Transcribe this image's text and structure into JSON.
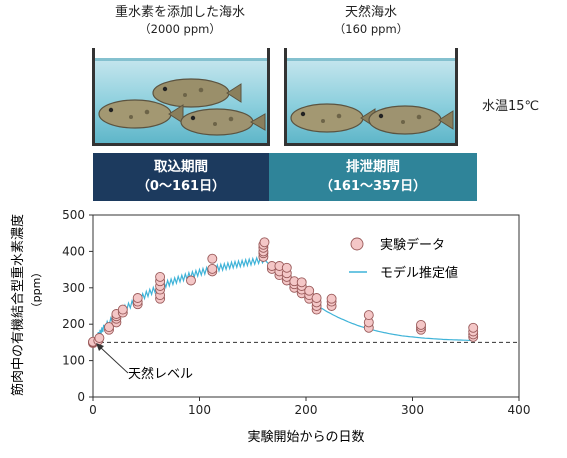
{
  "tanks": [
    {
      "title": "重水素を添加した海水",
      "sub": "（2000 ppm）"
    },
    {
      "title": "天然海水",
      "sub": "（160 ppm）"
    }
  ],
  "water_temp": "水温15℃",
  "periods": [
    {
      "name": "取込期間",
      "range": "（0～161日）",
      "color": "#1c3a5e"
    },
    {
      "name": "排泄期間",
      "range": "（161～357日）",
      "color": "#2f8499"
    }
  ],
  "colors": {
    "marker_fill": "#f4c7c7",
    "marker_edge": "#9a5a5a",
    "model": "#3fb3d8",
    "axis": "#333333"
  },
  "chart_data": {
    "type": "scatter",
    "xlabel": "実験開始からの日数",
    "ylabel": "筋肉中の有機結合型重水素濃度",
    "ylabel_unit": "（ppm）",
    "xlim": [
      0,
      400
    ],
    "ylim": [
      0,
      500
    ],
    "xticks": [
      "0",
      "100",
      "200",
      "300",
      "400"
    ],
    "yticks": [
      "0",
      "100",
      "200",
      "300",
      "400",
      "500"
    ],
    "legend": {
      "position": "top-right",
      "data_label": "実験データ",
      "model_label": "モデル推定値"
    },
    "natural_level": {
      "value": 150,
      "label": "天然レベル"
    },
    "series": [
      {
        "name": "実験データ",
        "kind": "points",
        "points": [
          [
            0,
            148
          ],
          [
            0,
            150
          ],
          [
            0,
            152
          ],
          [
            5,
            155
          ],
          [
            6,
            162
          ],
          [
            15,
            185
          ],
          [
            15,
            192
          ],
          [
            22,
            205
          ],
          [
            22,
            215
          ],
          [
            22,
            222
          ],
          [
            22,
            228
          ],
          [
            28,
            232
          ],
          [
            28,
            240
          ],
          [
            42,
            255
          ],
          [
            42,
            262
          ],
          [
            42,
            272
          ],
          [
            63,
            270
          ],
          [
            63,
            280
          ],
          [
            63,
            295
          ],
          [
            63,
            305
          ],
          [
            63,
            318
          ],
          [
            63,
            330
          ],
          [
            92,
            320
          ],
          [
            112,
            345
          ],
          [
            112,
            352
          ],
          [
            112,
            380
          ],
          [
            160,
            385
          ],
          [
            160,
            395
          ],
          [
            160,
            400
          ],
          [
            160,
            410
          ],
          [
            160,
            418
          ],
          [
            161,
            425
          ],
          [
            168,
            352
          ],
          [
            168,
            360
          ],
          [
            175,
            335
          ],
          [
            175,
            345
          ],
          [
            175,
            360
          ],
          [
            182,
            320
          ],
          [
            182,
            330
          ],
          [
            182,
            340
          ],
          [
            182,
            355
          ],
          [
            189,
            300
          ],
          [
            189,
            310
          ],
          [
            189,
            318
          ],
          [
            196,
            285
          ],
          [
            196,
            295
          ],
          [
            196,
            305
          ],
          [
            196,
            315
          ],
          [
            203,
            270
          ],
          [
            203,
            280
          ],
          [
            203,
            292
          ],
          [
            210,
            240
          ],
          [
            210,
            250
          ],
          [
            210,
            260
          ],
          [
            210,
            272
          ],
          [
            224,
            250
          ],
          [
            224,
            262
          ],
          [
            224,
            270
          ],
          [
            259,
            190
          ],
          [
            259,
            205
          ],
          [
            259,
            225
          ],
          [
            308,
            185
          ],
          [
            308,
            192
          ],
          [
            308,
            198
          ],
          [
            357,
            165
          ],
          [
            357,
            172
          ],
          [
            357,
            180
          ],
          [
            357,
            190
          ]
        ]
      },
      {
        "name": "モデル推定値",
        "kind": "line",
        "points": [
          [
            0,
            148
          ],
          [
            5,
            170
          ],
          [
            10,
            190
          ],
          [
            20,
            218
          ],
          [
            30,
            243
          ],
          [
            40,
            263
          ],
          [
            50,
            282
          ],
          [
            60,
            298
          ],
          [
            70,
            312
          ],
          [
            80,
            323
          ],
          [
            90,
            333
          ],
          [
            100,
            342
          ],
          [
            110,
            350
          ],
          [
            120,
            356
          ],
          [
            130,
            362
          ],
          [
            140,
            367
          ],
          [
            150,
            372
          ],
          [
            161,
            378
          ],
          [
            170,
            348
          ],
          [
            180,
            320
          ],
          [
            190,
            295
          ],
          [
            200,
            272
          ],
          [
            210,
            252
          ],
          [
            220,
            234
          ],
          [
            230,
            219
          ],
          [
            240,
            206
          ],
          [
            250,
            195
          ],
          [
            260,
            186
          ],
          [
            270,
            179
          ],
          [
            280,
            173
          ],
          [
            290,
            168
          ],
          [
            300,
            165
          ],
          [
            310,
            162
          ],
          [
            320,
            160
          ],
          [
            330,
            158
          ],
          [
            340,
            157
          ],
          [
            350,
            156
          ],
          [
            357,
            155
          ]
        ]
      }
    ]
  }
}
